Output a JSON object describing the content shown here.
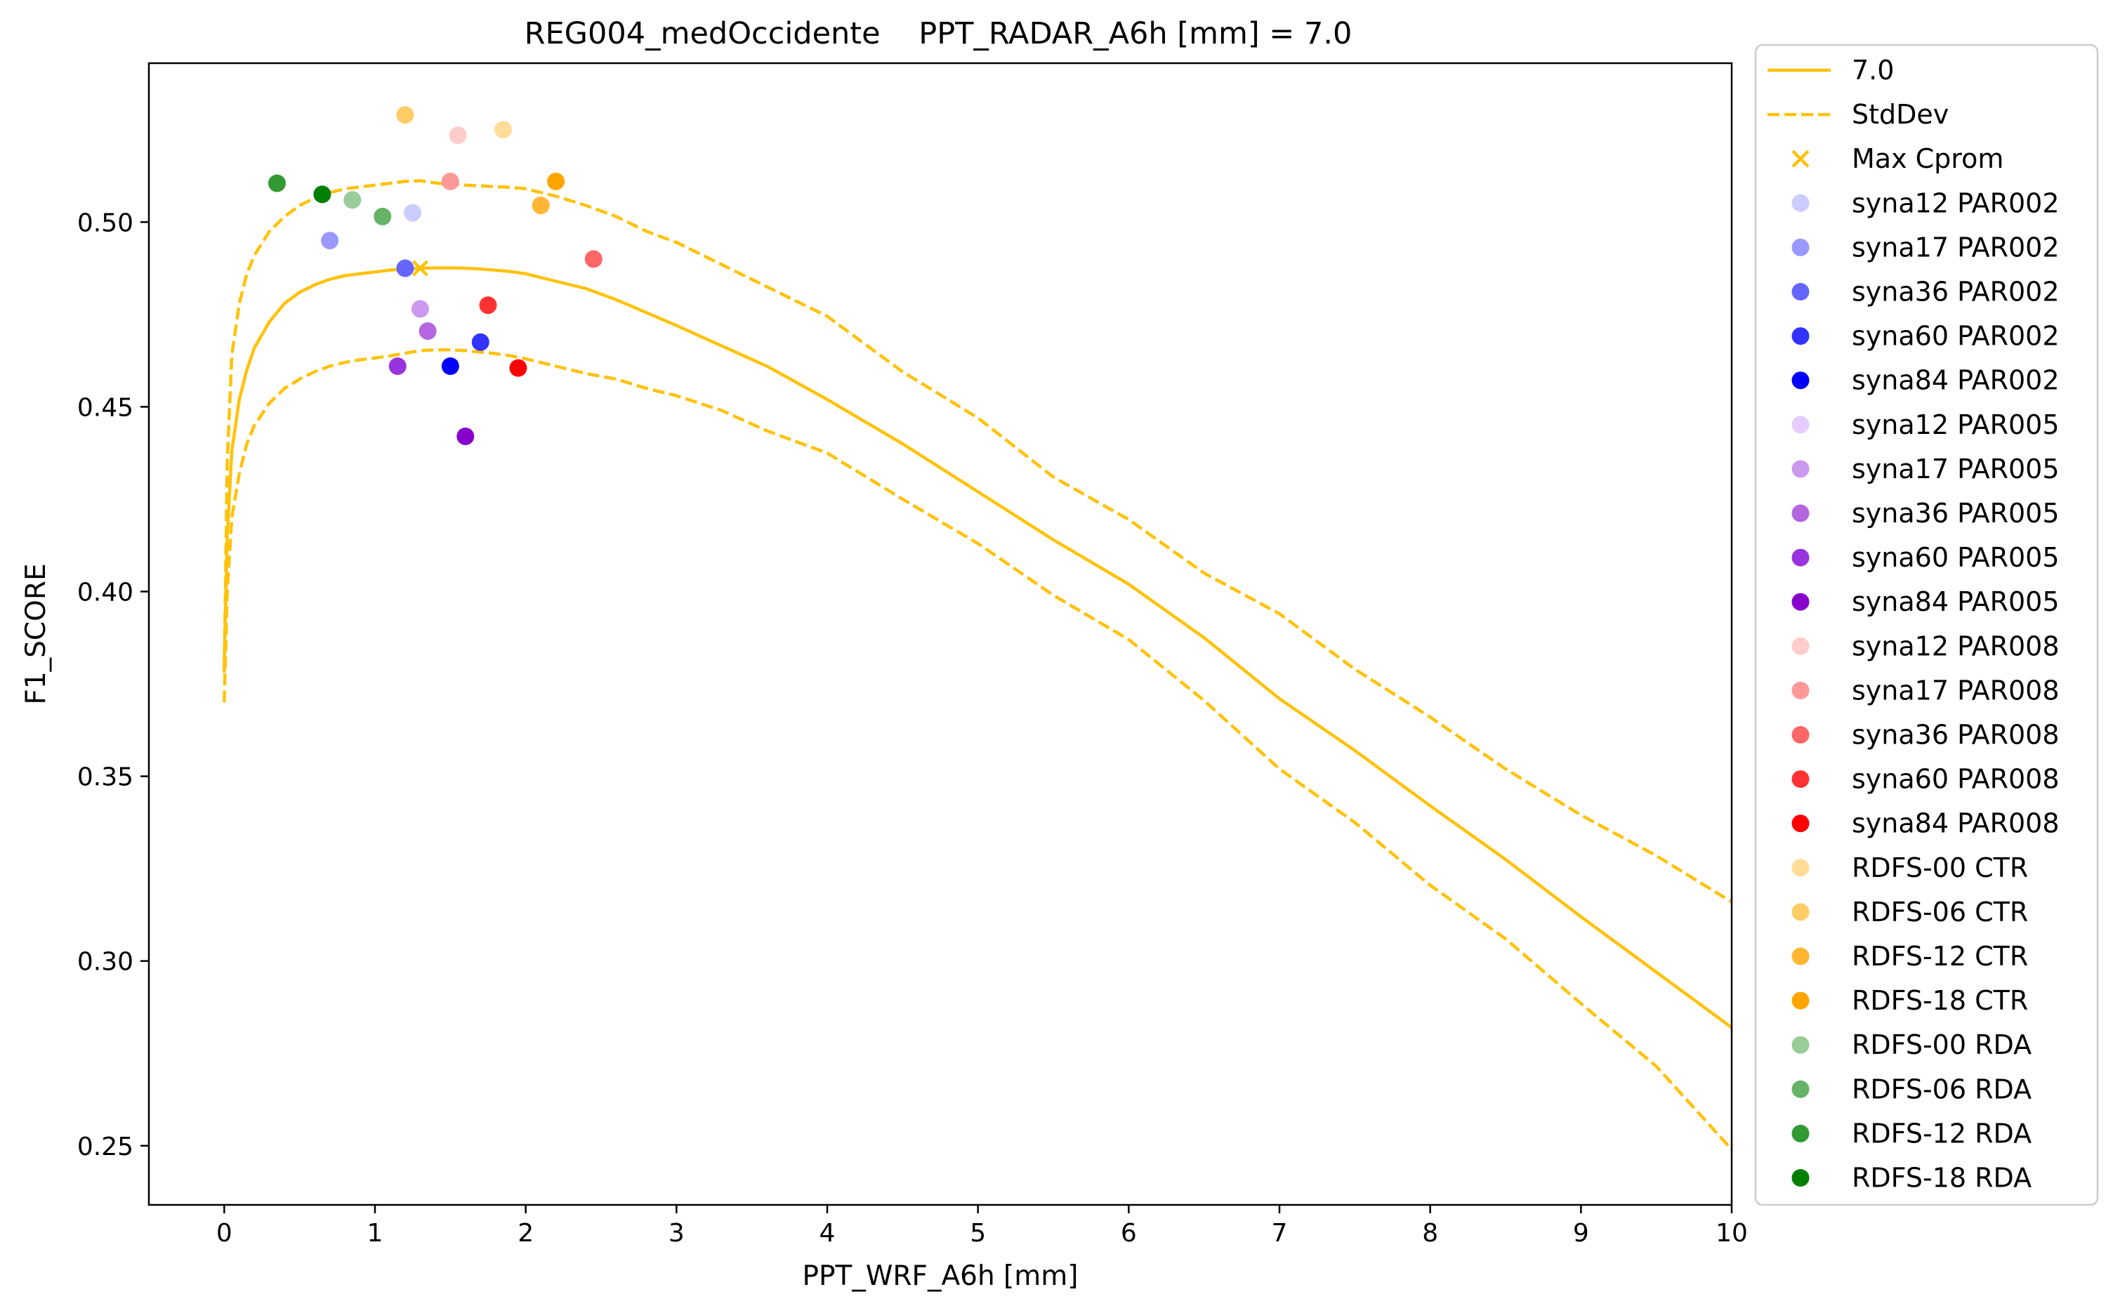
{
  "chart_data": {
    "type": "line",
    "title": "REG004_medOccidente    PPT_RADAR_A6h [mm] = 7.0",
    "xlabel": "PPT_WRF_A6h [mm]",
    "ylabel": "F1_SCORE",
    "xlim": [
      -0.5,
      10
    ],
    "ylim": [
      0.234,
      0.543
    ],
    "xticks": [
      0,
      1,
      2,
      3,
      4,
      5,
      6,
      7,
      8,
      9,
      10
    ],
    "yticks": [
      0.25,
      0.3,
      0.35,
      0.4,
      0.45,
      0.5
    ],
    "ytick_labels": [
      "0.25",
      "0.30",
      "0.35",
      "0.40",
      "0.45",
      "0.50"
    ],
    "grid": false,
    "legend_position": "outside-right",
    "line_color": "#ffc20a",
    "series": [
      {
        "name": "7.0",
        "style": "solid",
        "x": [
          0,
          0.02,
          0.05,
          0.1,
          0.15,
          0.2,
          0.3,
          0.4,
          0.5,
          0.6,
          0.7,
          0.8,
          0.9,
          1.0,
          1.1,
          1.2,
          1.3,
          1.4,
          1.5,
          1.6,
          1.7,
          1.8,
          1.9,
          2.0,
          2.2,
          2.4,
          2.6,
          2.8,
          3.0,
          3.3,
          3.6,
          4.0,
          4.5,
          5.0,
          5.5,
          6.0,
          6.5,
          7.0,
          7.5,
          8.0,
          8.5,
          9.0,
          9.5,
          10.0
        ],
        "y": [
          0.38,
          0.415,
          0.438,
          0.452,
          0.46,
          0.466,
          0.473,
          0.478,
          0.481,
          0.483,
          0.4845,
          0.4855,
          0.486,
          0.4865,
          0.487,
          0.4873,
          0.4875,
          0.4876,
          0.4876,
          0.4875,
          0.4873,
          0.487,
          0.4866,
          0.486,
          0.484,
          0.482,
          0.479,
          0.4755,
          0.472,
          0.4665,
          0.461,
          0.452,
          0.44,
          0.427,
          0.414,
          0.402,
          0.3875,
          0.371,
          0.357,
          0.342,
          0.3275,
          0.312,
          0.297,
          0.282
        ]
      },
      {
        "name": "StdDev",
        "style": "dashed",
        "x": [
          0,
          0.02,
          0.05,
          0.1,
          0.15,
          0.2,
          0.3,
          0.4,
          0.5,
          0.6,
          0.7,
          0.8,
          0.9,
          1.0,
          1.1,
          1.2,
          1.3,
          1.4,
          1.5,
          1.6,
          1.7,
          1.8,
          1.9,
          2.0,
          2.2,
          2.4,
          2.6,
          2.8,
          3.0,
          3.3,
          3.6,
          4.0,
          4.5,
          5.0,
          5.5,
          6.0,
          6.5,
          7.0,
          7.5,
          8.0,
          8.5,
          9.0,
          9.5,
          10.0
        ],
        "y": [
          0.37,
          0.4,
          0.42,
          0.432,
          0.44,
          0.445,
          0.451,
          0.455,
          0.4575,
          0.4595,
          0.461,
          0.462,
          0.4627,
          0.4632,
          0.4638,
          0.4645,
          0.4652,
          0.4654,
          0.4654,
          0.4652,
          0.4648,
          0.4644,
          0.4638,
          0.463,
          0.461,
          0.459,
          0.4575,
          0.455,
          0.453,
          0.449,
          0.4435,
          0.4375,
          0.425,
          0.413,
          0.399,
          0.387,
          0.3705,
          0.352,
          0.3375,
          0.3205,
          0.306,
          0.2885,
          0.2715,
          0.249
        ]
      },
      {
        "name": "",
        "style": "dashed",
        "x": [
          0,
          0.02,
          0.05,
          0.1,
          0.15,
          0.2,
          0.3,
          0.4,
          0.5,
          0.6,
          0.7,
          0.8,
          0.9,
          1.0,
          1.1,
          1.2,
          1.3,
          1.4,
          1.5,
          1.6,
          1.7,
          1.8,
          1.9,
          2.0,
          2.2,
          2.4,
          2.6,
          2.8,
          3.0,
          3.3,
          3.6,
          4.0,
          4.5,
          5.0,
          5.5,
          6.0,
          6.5,
          7.0,
          7.5,
          8.0,
          8.5,
          9.0,
          9.5,
          10.0
        ],
        "y": [
          0.378,
          0.435,
          0.464,
          0.478,
          0.486,
          0.491,
          0.4975,
          0.5015,
          0.5045,
          0.5065,
          0.508,
          0.509,
          0.5095,
          0.51,
          0.5105,
          0.511,
          0.5112,
          0.5106,
          0.5102,
          0.51,
          0.5098,
          0.5096,
          0.5094,
          0.509,
          0.507,
          0.5045,
          0.5015,
          0.4975,
          0.4945,
          0.4885,
          0.4825,
          0.4745,
          0.4595,
          0.447,
          0.431,
          0.4195,
          0.405,
          0.394,
          0.379,
          0.366,
          0.352,
          0.3395,
          0.3285,
          0.316
        ]
      }
    ],
    "max_cprom": {
      "label": "Max Cprom",
      "x": 1.3,
      "y": 0.4875,
      "color": "#ffc20a"
    },
    "points": [
      {
        "label": "syna12 PAR002",
        "color": "#ccccff",
        "x": 1.25,
        "y": 0.5025
      },
      {
        "label": "syna17 PAR002",
        "color": "#9999ff",
        "x": 0.7,
        "y": 0.495
      },
      {
        "label": "syna36 PAR002",
        "color": "#6666ff",
        "x": 1.2,
        "y": 0.4875
      },
      {
        "label": "syna60 PAR002",
        "color": "#3333ff",
        "x": 1.7,
        "y": 0.4675
      },
      {
        "label": "syna84 PAR002",
        "color": "#0000ff",
        "x": 1.5,
        "y": 0.461
      },
      {
        "label": "syna12 PAR005",
        "color": "#e6ccff",
        "x": null,
        "y": null
      },
      {
        "label": "syna17 PAR005",
        "color": "#cc99ee",
        "x": 1.3,
        "y": 0.4765
      },
      {
        "label": "syna36 PAR005",
        "color": "#b366e0",
        "x": 1.35,
        "y": 0.4705
      },
      {
        "label": "syna60 PAR005",
        "color": "#9933dd",
        "x": 1.15,
        "y": 0.461
      },
      {
        "label": "syna84 PAR005",
        "color": "#8800cc",
        "x": 1.6,
        "y": 0.442
      },
      {
        "label": "syna12 PAR008",
        "color": "#ffcccc",
        "x": 1.55,
        "y": 0.5235
      },
      {
        "label": "syna17 PAR008",
        "color": "#ff9999",
        "x": 1.5,
        "y": 0.511
      },
      {
        "label": "syna36 PAR008",
        "color": "#ff6666",
        "x": 2.45,
        "y": 0.49
      },
      {
        "label": "syna60 PAR008",
        "color": "#ff3333",
        "x": 1.75,
        "y": 0.4775
      },
      {
        "label": "syna84 PAR008",
        "color": "#ff0000",
        "x": 1.95,
        "y": 0.4605
      },
      {
        "label": " RDFS-00 CTR",
        "color": "#ffdd99",
        "x": 1.85,
        "y": 0.525
      },
      {
        "label": " RDFS-06 CTR",
        "color": "#ffcc66",
        "x": 1.2,
        "y": 0.529
      },
      {
        "label": " RDFS-12 CTR",
        "color": "#ffb733",
        "x": 2.1,
        "y": 0.5045
      },
      {
        "label": " RDFS-18 CTR",
        "color": "#ffa500",
        "x": 2.2,
        "y": 0.511
      },
      {
        "label": " RDFS-00 RDA",
        "color": "#99cc99",
        "x": 0.85,
        "y": 0.506
      },
      {
        "label": " RDFS-06 RDA",
        "color": "#66b266",
        "x": 1.05,
        "y": 0.5015
      },
      {
        "label": " RDFS-12 RDA",
        "color": "#339933",
        "x": 0.35,
        "y": 0.5105
      },
      {
        "label": " RDFS-18 RDA",
        "color": "#007f00",
        "x": 0.65,
        "y": 0.5075
      }
    ]
  }
}
